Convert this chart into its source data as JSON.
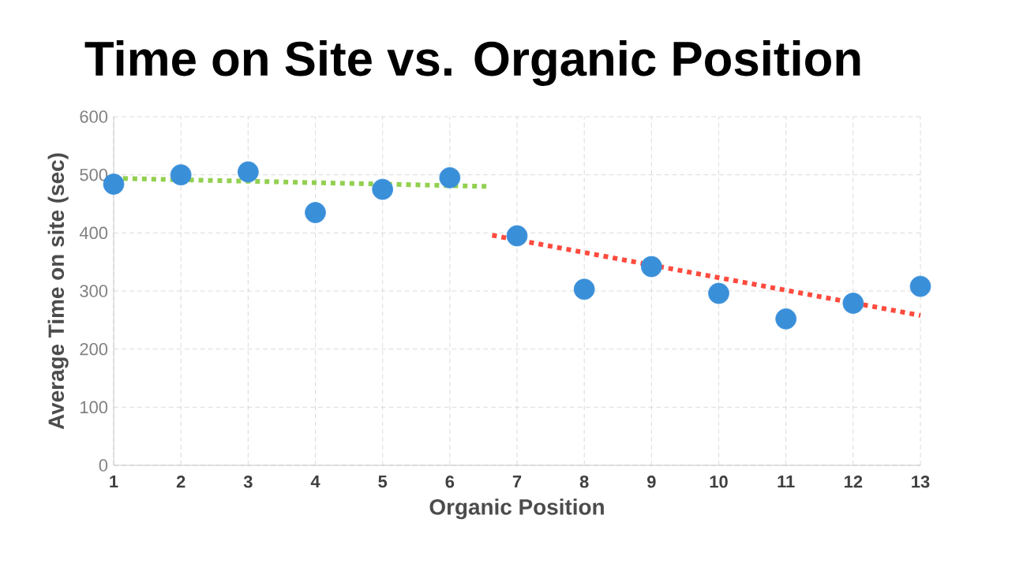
{
  "chart_data": {
    "type": "scatter",
    "title": "Time on Site vs. Organic Position",
    "xlabel": "Organic Position",
    "ylabel": "Average Time on site (sec)",
    "x": [
      1,
      2,
      3,
      4,
      5,
      6,
      7,
      8,
      9,
      10,
      11,
      12,
      13
    ],
    "xlim": [
      1,
      13
    ],
    "xticks": [
      1,
      2,
      3,
      4,
      5,
      6,
      7,
      8,
      9,
      10,
      11,
      12,
      13
    ],
    "ylim": [
      0,
      600
    ],
    "yticks": [
      0,
      100,
      200,
      300,
      400,
      500,
      600
    ],
    "grid": true,
    "series": [
      {
        "color": "#3a8fd9",
        "marker": "circle",
        "values": [
          484,
          500,
          505,
          435,
          475,
          495,
          395,
          303,
          342,
          296,
          252,
          279,
          308
        ]
      },
      {
        "type": "line",
        "color": "#92d050",
        "line_style": "dotted",
        "marker": "none",
        "x": [
          1,
          6.6
        ],
        "values": [
          494,
          480
        ]
      },
      {
        "type": "line",
        "color": "#ff4b3e",
        "line_style": "dotted",
        "marker": "none",
        "x": [
          6.63,
          13
        ],
        "values": [
          396,
          258
        ]
      }
    ]
  }
}
